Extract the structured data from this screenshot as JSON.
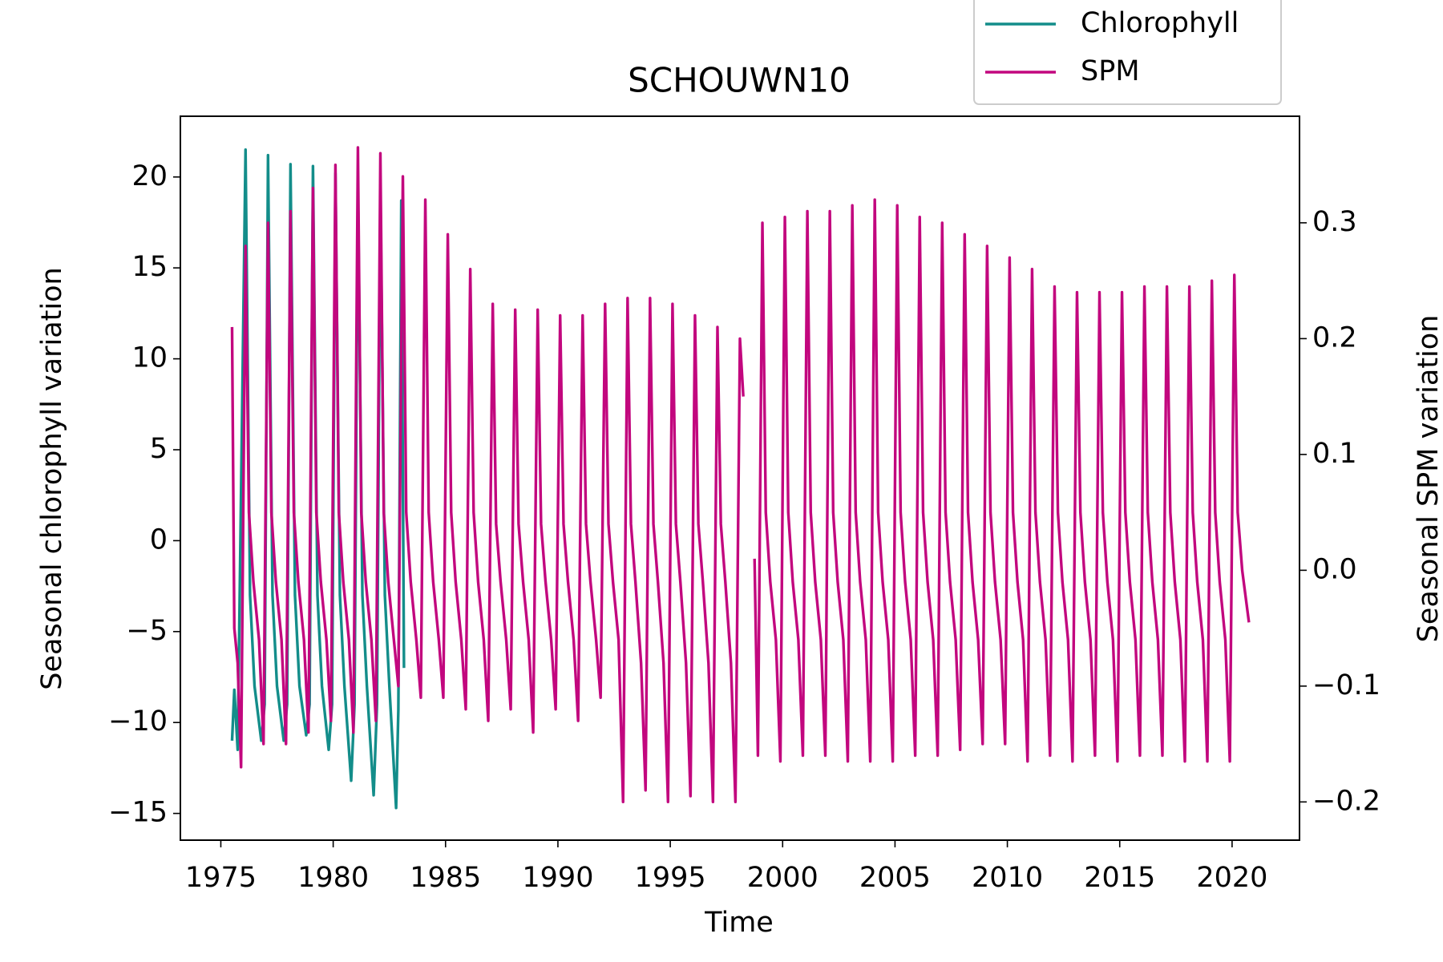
{
  "chart_data": {
    "type": "line",
    "title": "SCHOUWN10",
    "xlabel": "Time",
    "ylabel": "Seasonal chlorophyll variation",
    "y2label": "Seasonal SPM variation",
    "xlim": [
      1973.2,
      2023.0
    ],
    "xticks": [
      1975,
      1980,
      1985,
      1990,
      1995,
      2000,
      2005,
      2010,
      2015,
      2020
    ],
    "ylim": [
      -16.47,
      23.34
    ],
    "yticks": [
      {
        "value": -15,
        "label": "−15"
      },
      {
        "value": -10,
        "label": "−10"
      },
      {
        "value": -5,
        "label": "−5"
      },
      0,
      5,
      10,
      15,
      20
    ],
    "y2lim": [
      -0.233,
      0.392
    ],
    "y2ticks": [
      {
        "value": -0.2,
        "label": "−0.2"
      },
      {
        "value": -0.1,
        "label": "−0.1"
      },
      {
        "value": 0,
        "label": "0.0"
      },
      0.1,
      0.2,
      0.3
    ],
    "legend": "upper right",
    "series": [
      {
        "name": "Chlorophyll",
        "color": "#138d8a",
        "axis": "y",
        "x": [
          1975.5,
          1975.6,
          1975.75,
          1976.1,
          1976.3,
          1976.5,
          1976.8,
          1976.95,
          1977.1,
          1977.3,
          1977.5,
          1977.8,
          1977.95,
          1978.1,
          1978.3,
          1978.5,
          1978.8,
          1978.95,
          1979.1,
          1979.3,
          1979.5,
          1979.8,
          1979.95,
          1980.1,
          1980.3,
          1980.5,
          1980.8,
          1980.95,
          1981.1,
          1981.3,
          1981.5,
          1981.8,
          1981.95,
          1982.1,
          1982.3,
          1982.5,
          1982.8,
          1982.9,
          1983.03,
          1983.15
        ],
        "values": [
          -11,
          -8.2,
          -11.5,
          21.5,
          -3,
          -8,
          -11,
          -9,
          21.2,
          -3,
          -8,
          -11,
          -9,
          20.7,
          -3,
          -8,
          -10.7,
          -9,
          20.6,
          -3,
          -8,
          -11.5,
          -9,
          20.2,
          -3,
          -8,
          -13.2,
          -9,
          19.7,
          -3,
          -8,
          -14,
          -9,
          19.2,
          -3,
          -8,
          -14.7,
          -9.3,
          18.7,
          -7
        ]
      },
      {
        "name": "SPM",
        "color": "#c2077e",
        "axis": "y2",
        "x": [
          1975.5,
          1975.6,
          1975.75,
          1975.9,
          1976.1,
          1976.25,
          1976.45,
          1976.7,
          1976.9,
          1977.1,
          1977.25,
          1977.45,
          1977.7,
          1977.9,
          1978.1,
          1978.25,
          1978.45,
          1978.7,
          1978.9,
          1979.1,
          1979.25,
          1979.45,
          1979.7,
          1979.9,
          1980.1,
          1980.25,
          1980.45,
          1980.7,
          1980.9,
          1981.1,
          1981.25,
          1981.45,
          1981.7,
          1981.9,
          1982.1,
          1982.25,
          1982.45,
          1982.7,
          1982.9,
          1983.1,
          1983.25,
          1983.45,
          1983.7,
          1983.9,
          1984.1,
          1984.25,
          1984.45,
          1984.7,
          1984.9,
          1985.1,
          1985.25,
          1985.45,
          1985.7,
          1985.9,
          1986.1,
          1986.25,
          1986.45,
          1986.7,
          1986.9,
          1987.1,
          1987.25,
          1987.45,
          1987.7,
          1987.9,
          1988.1,
          1988.25,
          1988.45,
          1988.7,
          1988.9,
          1989.1,
          1989.25,
          1989.45,
          1989.7,
          1989.9,
          1990.1,
          1990.25,
          1990.45,
          1990.7,
          1990.9,
          1991.1,
          1991.25,
          1991.45,
          1991.7,
          1991.9,
          1992.1,
          1992.25,
          1992.45,
          1992.7,
          1992.9,
          1993.1,
          1993.25,
          1993.45,
          1993.7,
          1993.9,
          1994.1,
          1994.25,
          1994.45,
          1994.7,
          1994.9,
          1995.1,
          1995.25,
          1995.45,
          1995.7,
          1995.9,
          1996.1,
          1996.25,
          1996.45,
          1996.7,
          1996.9,
          1997.1,
          1997.25,
          1997.45,
          1997.7,
          1997.9,
          1998.1,
          1998.25,
          1998.5,
          1998.75,
          1998.9,
          1999.1,
          1999.25,
          1999.45,
          1999.7,
          1999.9,
          2000.1,
          2000.25,
          2000.45,
          2000.7,
          2000.9,
          2001.1,
          2001.25,
          2001.45,
          2001.7,
          2001.9,
          2002.1,
          2002.25,
          2002.45,
          2002.7,
          2002.9,
          2003.1,
          2003.25,
          2003.45,
          2003.7,
          2003.9,
          2004.1,
          2004.25,
          2004.45,
          2004.7,
          2004.9,
          2005.1,
          2005.25,
          2005.45,
          2005.7,
          2005.9,
          2006.1,
          2006.25,
          2006.45,
          2006.7,
          2006.9,
          2007.1,
          2007.25,
          2007.45,
          2007.7,
          2007.9,
          2008.1,
          2008.25,
          2008.45,
          2008.7,
          2008.9,
          2009.1,
          2009.25,
          2009.45,
          2009.7,
          2009.9,
          2010.1,
          2010.25,
          2010.45,
          2010.7,
          2010.9,
          2011.1,
          2011.25,
          2011.45,
          2011.7,
          2011.9,
          2012.1,
          2012.25,
          2012.45,
          2012.7,
          2012.9,
          2013.1,
          2013.25,
          2013.45,
          2013.7,
          2013.9,
          2014.1,
          2014.25,
          2014.45,
          2014.7,
          2014.9,
          2015.1,
          2015.25,
          2015.45,
          2015.7,
          2015.9,
          2016.1,
          2016.25,
          2016.45,
          2016.7,
          2016.9,
          2017.1,
          2017.25,
          2017.45,
          2017.7,
          2017.9,
          2018.1,
          2018.25,
          2018.45,
          2018.7,
          2018.9,
          2019.1,
          2019.25,
          2019.45,
          2019.7,
          2019.9,
          2020.1,
          2020.25,
          2020.45,
          2020.75
        ],
        "values": [
          0.21,
          -0.05,
          -0.08,
          -0.17,
          0.28,
          0.05,
          -0.01,
          -0.06,
          -0.15,
          0.3,
          0.05,
          -0.01,
          -0.06,
          -0.15,
          0.31,
          0.05,
          -0.01,
          -0.06,
          -0.14,
          0.33,
          0.05,
          -0.01,
          -0.06,
          -0.13,
          0.35,
          0.05,
          -0.01,
          -0.06,
          -0.14,
          0.365,
          0.05,
          -0.01,
          -0.06,
          -0.13,
          0.36,
          0.05,
          -0.01,
          -0.06,
          -0.1,
          0.34,
          0.05,
          -0.01,
          -0.06,
          -0.11,
          0.32,
          0.05,
          -0.01,
          -0.06,
          -0.11,
          0.29,
          0.05,
          -0.01,
          -0.06,
          -0.12,
          0.26,
          0.05,
          -0.01,
          -0.06,
          -0.13,
          0.23,
          0.04,
          -0.01,
          -0.06,
          -0.12,
          0.225,
          0.04,
          -0.01,
          -0.06,
          -0.14,
          0.225,
          0.04,
          -0.01,
          -0.06,
          -0.12,
          0.22,
          0.04,
          -0.01,
          -0.06,
          -0.13,
          0.22,
          0.04,
          -0.01,
          -0.06,
          -0.11,
          0.23,
          0.04,
          -0.01,
          -0.06,
          -0.2,
          0.235,
          0.04,
          -0.01,
          -0.08,
          -0.19,
          0.235,
          0.04,
          -0.01,
          -0.08,
          -0.2,
          0.23,
          0.04,
          -0.01,
          -0.08,
          -0.195,
          0.22,
          0.04,
          -0.01,
          -0.08,
          -0.2,
          0.21,
          0.04,
          -0.01,
          -0.08,
          -0.2,
          0.2,
          0.15,
          null,
          0.01,
          -0.16,
          0.3,
          0.05,
          -0.01,
          -0.06,
          -0.165,
          0.305,
          0.05,
          -0.01,
          -0.06,
          -0.16,
          0.31,
          0.05,
          -0.01,
          -0.06,
          -0.16,
          0.31,
          0.05,
          -0.01,
          -0.06,
          -0.165,
          0.315,
          0.05,
          -0.01,
          -0.06,
          -0.165,
          0.32,
          0.05,
          -0.01,
          -0.06,
          -0.165,
          0.315,
          0.05,
          -0.01,
          -0.06,
          -0.16,
          0.305,
          0.05,
          -0.01,
          -0.06,
          -0.16,
          0.3,
          0.05,
          -0.01,
          -0.06,
          -0.155,
          0.29,
          0.05,
          -0.01,
          -0.06,
          -0.15,
          0.28,
          0.05,
          -0.01,
          -0.06,
          -0.15,
          0.27,
          0.05,
          -0.01,
          -0.06,
          -0.165,
          0.26,
          0.05,
          -0.01,
          -0.06,
          -0.16,
          0.245,
          0.05,
          -0.01,
          -0.06,
          -0.165,
          0.24,
          0.05,
          -0.01,
          -0.06,
          -0.16,
          0.24,
          0.05,
          -0.01,
          -0.06,
          -0.165,
          0.24,
          0.05,
          -0.01,
          -0.06,
          -0.16,
          0.245,
          0.05,
          -0.01,
          -0.06,
          -0.16,
          0.245,
          0.05,
          -0.01,
          -0.06,
          -0.165,
          0.245,
          0.05,
          -0.01,
          -0.06,
          -0.165,
          0.25,
          0.05,
          -0.01,
          -0.06,
          -0.165,
          0.255,
          0.05,
          0.0,
          -0.045
        ]
      }
    ]
  }
}
